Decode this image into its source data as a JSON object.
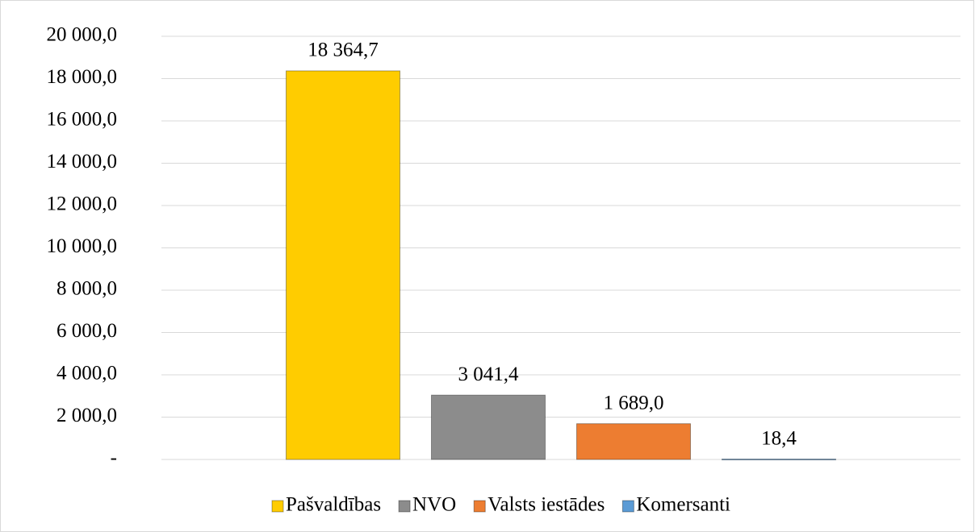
{
  "chart_data": {
    "type": "bar",
    "categories": [
      null
    ],
    "series": [
      {
        "name": "Pašvaldības",
        "color": "#ffcc00",
        "values": [
          18364.7
        ],
        "value_labels": [
          "18 364,7"
        ]
      },
      {
        "name": "NVO",
        "color": "#8c8c8c",
        "values": [
          3041.4
        ],
        "value_labels": [
          "3 041,4"
        ]
      },
      {
        "name": "Valsts iestādes",
        "color": "#ed7d31",
        "values": [
          1689.0
        ],
        "value_labels": [
          "1 689,0"
        ]
      },
      {
        "name": "Komersanti",
        "color": "#5b9bd5",
        "values": [
          18.4
        ],
        "value_labels": [
          "18,4"
        ]
      }
    ],
    "ylim": [
      0,
      20000
    ],
    "yticks": [
      {
        "value": 0,
        "label": "-"
      },
      {
        "value": 2000,
        "label": "2 000,0"
      },
      {
        "value": 4000,
        "label": "4 000,0"
      },
      {
        "value": 6000,
        "label": "6 000,0"
      },
      {
        "value": 8000,
        "label": "8 000,0"
      },
      {
        "value": 10000,
        "label": "10 000,0"
      },
      {
        "value": 12000,
        "label": "12 000,0"
      },
      {
        "value": 14000,
        "label": "14 000,0"
      },
      {
        "value": 16000,
        "label": "16 000,0"
      },
      {
        "value": 18000,
        "label": "18 000,0"
      },
      {
        "value": 20000,
        "label": "20 000,0"
      }
    ],
    "grid": true,
    "legend": "bottom"
  }
}
